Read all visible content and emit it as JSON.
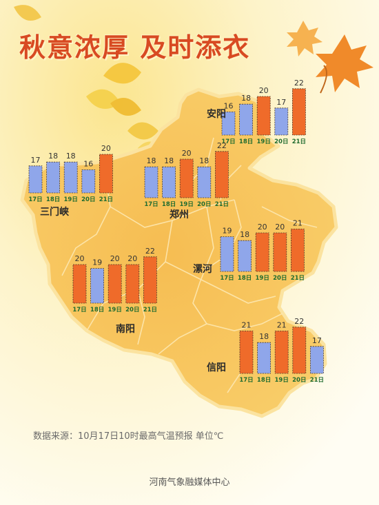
{
  "title": "秋意浓厚 及时添衣",
  "footer": {
    "source": "数据来源：10月17日10时最高气温预报   单位℃",
    "org": "河南气象融媒体中心"
  },
  "colors": {
    "warm_bar": "#ef6b2a",
    "cool_bar": "#8fa6ea",
    "map_fill": "#f6c35a",
    "map_border": "#fbe9b0",
    "city_text": "#2b2b2b",
    "date_text": "#1f6b2f",
    "title": "#d84a22"
  },
  "chart_data": [
    {
      "type": "bar",
      "city": "安阳",
      "categories": [
        "17日",
        "18日",
        "19日",
        "20日",
        "21日"
      ],
      "values": [
        16,
        18,
        20,
        17,
        22
      ],
      "unit": "℃"
    },
    {
      "type": "bar",
      "city": "三门峡",
      "categories": [
        "17日",
        "18日",
        "19日",
        "20日",
        "21日"
      ],
      "values": [
        17,
        18,
        18,
        16,
        20
      ],
      "unit": "℃"
    },
    {
      "type": "bar",
      "city": "郑州",
      "categories": [
        "17日",
        "18日",
        "19日",
        "20日",
        "21日"
      ],
      "values": [
        18,
        18,
        20,
        18,
        22
      ],
      "unit": "℃"
    },
    {
      "type": "bar",
      "city": "漯河",
      "categories": [
        "17日",
        "18日",
        "19日",
        "20日",
        "21日"
      ],
      "values": [
        19,
        18,
        20,
        20,
        21
      ],
      "unit": "℃"
    },
    {
      "type": "bar",
      "city": "南阳",
      "categories": [
        "17日",
        "18日",
        "19日",
        "20日",
        "21日"
      ],
      "values": [
        20,
        19,
        20,
        20,
        22
      ],
      "unit": "℃"
    },
    {
      "type": "bar",
      "city": "信阳",
      "categories": [
        "17日",
        "18日",
        "19日",
        "20日",
        "21日"
      ],
      "values": [
        21,
        18,
        21,
        22,
        17
      ],
      "unit": "℃"
    }
  ]
}
